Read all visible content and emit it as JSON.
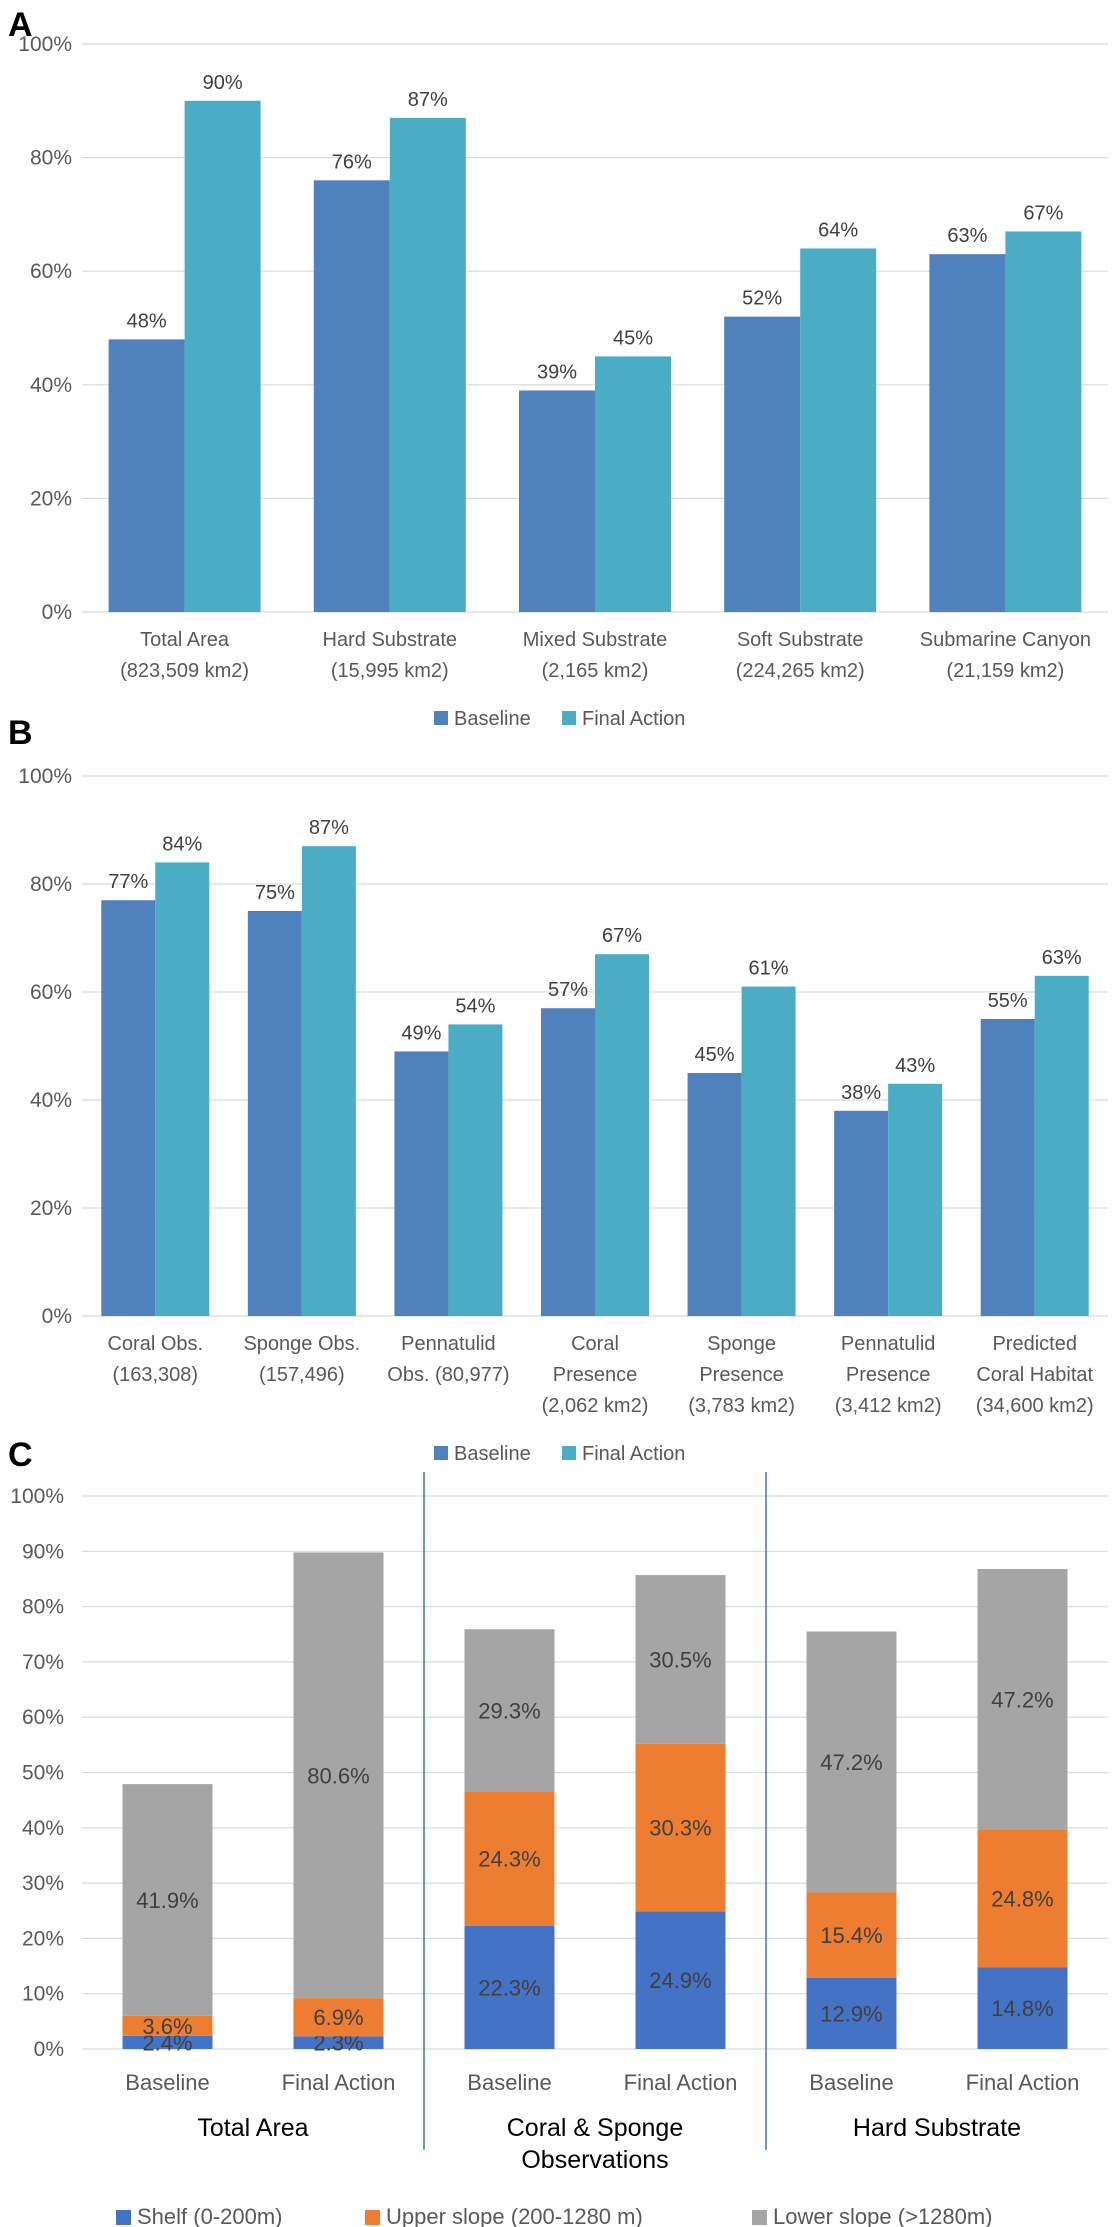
{
  "colors": {
    "baseline": "#4F81BD",
    "final_action": "#4BACC6",
    "shelf": "#4472C4",
    "upper_slope": "#ED7D31",
    "lower_slope": "#A5A5A5",
    "grid": "#D9D9D9",
    "axis_text": "#595959",
    "separator": "#4472C4"
  },
  "chart_data": [
    {
      "panel": "A",
      "type": "bar",
      "ylim": [
        0,
        100
      ],
      "yticks": [
        0,
        20,
        40,
        60,
        80,
        100
      ],
      "ytick_labels": [
        "0%",
        "20%",
        "40%",
        "60%",
        "80%",
        "100%"
      ],
      "categories": [
        [
          "Total Area",
          "(823,509 km2)"
        ],
        [
          "Hard Substrate",
          "(15,995 km2)"
        ],
        [
          "Mixed Substrate",
          "(2,165 km2)"
        ],
        [
          "Soft Substrate",
          "(224,265 km2)"
        ],
        [
          "Submarine Canyon",
          "(21,159 km2)"
        ]
      ],
      "series": [
        {
          "name": "Baseline",
          "color_key": "baseline",
          "values": [
            48,
            76,
            39,
            52,
            63
          ],
          "labels": [
            "48%",
            "76%",
            "39%",
            "52%",
            "63%"
          ]
        },
        {
          "name": "Final Action",
          "color_key": "final_action",
          "values": [
            90,
            87,
            45,
            64,
            67
          ],
          "labels": [
            "90%",
            "87%",
            "45%",
            "64%",
            "67%"
          ]
        }
      ],
      "legend": [
        "Baseline",
        "Final Action"
      ],
      "legend_position": "bottom"
    },
    {
      "panel": "B",
      "type": "bar",
      "ylim": [
        0,
        100
      ],
      "yticks": [
        0,
        20,
        40,
        60,
        80,
        100
      ],
      "ytick_labels": [
        "0%",
        "20%",
        "40%",
        "60%",
        "80%",
        "100%"
      ],
      "categories": [
        [
          "Coral Obs.",
          "(163,308)"
        ],
        [
          "Sponge Obs.",
          "(157,496)"
        ],
        [
          "Pennatulid",
          "Obs. (80,977)"
        ],
        [
          "Coral",
          "Presence",
          "(2,062 km2)"
        ],
        [
          "Sponge",
          "Presence",
          "(3,783 km2)"
        ],
        [
          "Pennatulid",
          "Presence",
          "(3,412 km2)"
        ],
        [
          "Predicted",
          "Coral Habitat",
          "(34,600 km2)"
        ]
      ],
      "series": [
        {
          "name": "Baseline",
          "color_key": "baseline",
          "values": [
            77,
            75,
            49,
            57,
            45,
            38,
            55
          ],
          "labels": [
            "77%",
            "75%",
            "49%",
            "57%",
            "45%",
            "38%",
            "55%"
          ]
        },
        {
          "name": "Final Action",
          "color_key": "final_action",
          "values": [
            84,
            87,
            54,
            67,
            61,
            43,
            63
          ],
          "labels": [
            "84%",
            "87%",
            "54%",
            "67%",
            "61%",
            "43%",
            "63%"
          ]
        }
      ],
      "legend": [
        "Baseline",
        "Final Action"
      ],
      "legend_position": "bottom"
    },
    {
      "panel": "C",
      "type": "bar",
      "stacked": true,
      "ylim": [
        0,
        100
      ],
      "yticks": [
        0,
        10,
        20,
        30,
        40,
        50,
        60,
        70,
        80,
        90,
        100
      ],
      "ytick_labels": [
        "0%",
        "10%",
        "20%",
        "30%",
        "40%",
        "50%",
        "60%",
        "70%",
        "80%",
        "90%",
        "100%"
      ],
      "groups": [
        {
          "label": [
            "Total Area"
          ],
          "bars": [
            "Baseline",
            "Final Action"
          ]
        },
        {
          "label": [
            "Coral & Sponge",
            "Observations"
          ],
          "bars": [
            "Baseline",
            "Final Action"
          ]
        },
        {
          "label": [
            "Hard Substrate"
          ],
          "bars": [
            "Baseline",
            "Final Action"
          ]
        }
      ],
      "series": [
        {
          "name": "Shelf (0-200m)",
          "color_key": "shelf",
          "values": [
            2.4,
            2.3,
            22.3,
            24.9,
            12.9,
            14.8
          ],
          "labels": [
            "2.4%",
            "2.3%",
            "22.3%",
            "24.9%",
            "12.9%",
            "14.8%"
          ]
        },
        {
          "name": "Upper slope (200-1280 m)",
          "color_key": "upper_slope",
          "values": [
            3.6,
            6.9,
            24.3,
            30.3,
            15.4,
            24.8
          ],
          "labels": [
            "3.6%",
            "6.9%",
            "24.3%",
            "30.3%",
            "15.4%",
            "24.8%"
          ]
        },
        {
          "name": "Lower slope (>1280m)",
          "color_key": "lower_slope",
          "values": [
            41.9,
            80.6,
            29.3,
            30.5,
            47.2,
            47.2
          ],
          "labels": [
            "41.9%",
            "80.6%",
            "29.3%",
            "30.5%",
            "47.2%",
            "47.2%"
          ]
        }
      ],
      "legend": [
        "Shelf (0-200m)",
        "Upper slope (200-1280 m)",
        "Lower slope (>1280m)"
      ],
      "legend_position": "bottom"
    }
  ]
}
